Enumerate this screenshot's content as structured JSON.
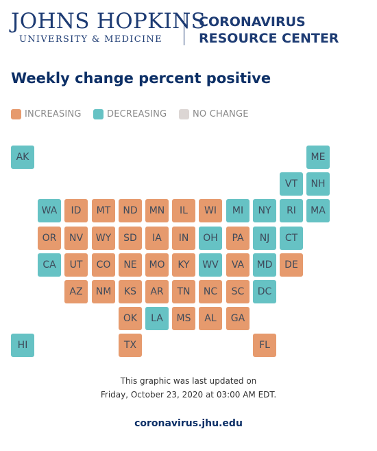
{
  "header": {
    "jh_line1": "JOHNS HOPKINS",
    "jh_line2": "UNIVERSITY & MEDICINE",
    "crc_line1": "CORONAVIRUS",
    "crc_line2": "RESOURCE CENTER"
  },
  "title": "Weekly change percent positive",
  "legend": [
    {
      "label": "INCREASING",
      "color": "#e69a6d"
    },
    {
      "label": "DECREASING",
      "color": "#66c2c4"
    },
    {
      "label": "NO CHANGE",
      "color": "#dcd6d4"
    }
  ],
  "states": [
    {
      "code": "AK",
      "status": "decreasing",
      "col": 0,
      "row": 0
    },
    {
      "code": "ME",
      "status": "decreasing",
      "col": 11,
      "row": 0
    },
    {
      "code": "VT",
      "status": "decreasing",
      "col": 10,
      "row": 1
    },
    {
      "code": "NH",
      "status": "decreasing",
      "col": 11,
      "row": 1
    },
    {
      "code": "WA",
      "status": "decreasing",
      "col": 1,
      "row": 2
    },
    {
      "code": "ID",
      "status": "increasing",
      "col": 2,
      "row": 2
    },
    {
      "code": "MT",
      "status": "increasing",
      "col": 3,
      "row": 2
    },
    {
      "code": "ND",
      "status": "increasing",
      "col": 4,
      "row": 2
    },
    {
      "code": "MN",
      "status": "increasing",
      "col": 5,
      "row": 2
    },
    {
      "code": "IL",
      "status": "increasing",
      "col": 6,
      "row": 2
    },
    {
      "code": "WI",
      "status": "increasing",
      "col": 7,
      "row": 2
    },
    {
      "code": "MI",
      "status": "decreasing",
      "col": 8,
      "row": 2
    },
    {
      "code": "NY",
      "status": "decreasing",
      "col": 9,
      "row": 2
    },
    {
      "code": "RI",
      "status": "decreasing",
      "col": 10,
      "row": 2
    },
    {
      "code": "MA",
      "status": "decreasing",
      "col": 11,
      "row": 2
    },
    {
      "code": "OR",
      "status": "increasing",
      "col": 1,
      "row": 3
    },
    {
      "code": "NV",
      "status": "increasing",
      "col": 2,
      "row": 3
    },
    {
      "code": "WY",
      "status": "increasing",
      "col": 3,
      "row": 3
    },
    {
      "code": "SD",
      "status": "increasing",
      "col": 4,
      "row": 3
    },
    {
      "code": "IA",
      "status": "increasing",
      "col": 5,
      "row": 3
    },
    {
      "code": "IN",
      "status": "increasing",
      "col": 6,
      "row": 3
    },
    {
      "code": "OH",
      "status": "decreasing",
      "col": 7,
      "row": 3
    },
    {
      "code": "PA",
      "status": "increasing",
      "col": 8,
      "row": 3
    },
    {
      "code": "NJ",
      "status": "decreasing",
      "col": 9,
      "row": 3
    },
    {
      "code": "CT",
      "status": "decreasing",
      "col": 10,
      "row": 3
    },
    {
      "code": "CA",
      "status": "decreasing",
      "col": 1,
      "row": 4
    },
    {
      "code": "UT",
      "status": "increasing",
      "col": 2,
      "row": 4
    },
    {
      "code": "CO",
      "status": "increasing",
      "col": 3,
      "row": 4
    },
    {
      "code": "NE",
      "status": "increasing",
      "col": 4,
      "row": 4
    },
    {
      "code": "MO",
      "status": "increasing",
      "col": 5,
      "row": 4
    },
    {
      "code": "KY",
      "status": "increasing",
      "col": 6,
      "row": 4
    },
    {
      "code": "WV",
      "status": "decreasing",
      "col": 7,
      "row": 4
    },
    {
      "code": "VA",
      "status": "increasing",
      "col": 8,
      "row": 4
    },
    {
      "code": "MD",
      "status": "decreasing",
      "col": 9,
      "row": 4
    },
    {
      "code": "DE",
      "status": "increasing",
      "col": 10,
      "row": 4
    },
    {
      "code": "AZ",
      "status": "increasing",
      "col": 2,
      "row": 5
    },
    {
      "code": "NM",
      "status": "increasing",
      "col": 3,
      "row": 5
    },
    {
      "code": "KS",
      "status": "increasing",
      "col": 4,
      "row": 5
    },
    {
      "code": "AR",
      "status": "increasing",
      "col": 5,
      "row": 5
    },
    {
      "code": "TN",
      "status": "increasing",
      "col": 6,
      "row": 5
    },
    {
      "code": "NC",
      "status": "increasing",
      "col": 7,
      "row": 5
    },
    {
      "code": "SC",
      "status": "increasing",
      "col": 8,
      "row": 5
    },
    {
      "code": "DC",
      "status": "decreasing",
      "col": 9,
      "row": 5
    },
    {
      "code": "OK",
      "status": "increasing",
      "col": 4,
      "row": 6
    },
    {
      "code": "LA",
      "status": "decreasing",
      "col": 5,
      "row": 6
    },
    {
      "code": "MS",
      "status": "increasing",
      "col": 6,
      "row": 6
    },
    {
      "code": "AL",
      "status": "increasing",
      "col": 7,
      "row": 6
    },
    {
      "code": "GA",
      "status": "increasing",
      "col": 8,
      "row": 6
    },
    {
      "code": "HI",
      "status": "decreasing",
      "col": 0,
      "row": 7
    },
    {
      "code": "TX",
      "status": "increasing",
      "col": 4,
      "row": 7
    },
    {
      "code": "FL",
      "status": "increasing",
      "col": 9,
      "row": 7
    }
  ],
  "footer": {
    "line1": "This graphic was last updated on",
    "line2": "Friday, October 23, 2020 at 03:00 AM EDT.",
    "link": "coronavirus.jhu.edu"
  }
}
